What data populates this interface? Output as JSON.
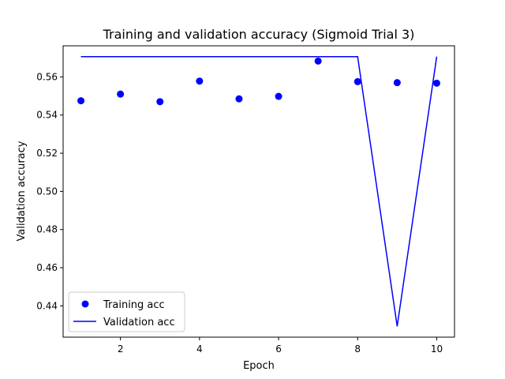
{
  "chart_data": {
    "type": "line",
    "title": "Training and validation accuracy (Sigmoid Trial 3)",
    "xlabel": "Epoch",
    "ylabel": "Validation accuracy",
    "xlim": [
      0.55,
      10.45
    ],
    "ylim": [
      0.4236,
      0.5763
    ],
    "x_ticks": [
      2,
      4,
      6,
      8,
      10
    ],
    "x_tick_labels": [
      "2",
      "4",
      "6",
      "8",
      "10"
    ],
    "y_ticks": [
      0.44,
      0.46,
      0.48,
      0.5,
      0.52,
      0.54,
      0.56
    ],
    "y_tick_labels": [
      "0.44",
      "0.46",
      "0.48",
      "0.50",
      "0.52",
      "0.54",
      "0.56"
    ],
    "grid": false,
    "legend_position": "lower-left",
    "x": [
      1,
      2,
      3,
      4,
      5,
      6,
      7,
      8,
      9,
      10
    ],
    "series": [
      {
        "name": "Training acc",
        "style": "markers",
        "color": "#0000ff",
        "values": [
          0.5475,
          0.551,
          0.547,
          0.5578,
          0.5485,
          0.5498,
          0.5683,
          0.5575,
          0.557,
          0.5567
        ]
      },
      {
        "name": "Validation acc",
        "style": "line",
        "color": "#0000ff",
        "values": [
          0.5706,
          0.5706,
          0.5706,
          0.5706,
          0.5706,
          0.5706,
          0.5706,
          0.5706,
          0.4293,
          0.5706
        ]
      }
    ]
  }
}
